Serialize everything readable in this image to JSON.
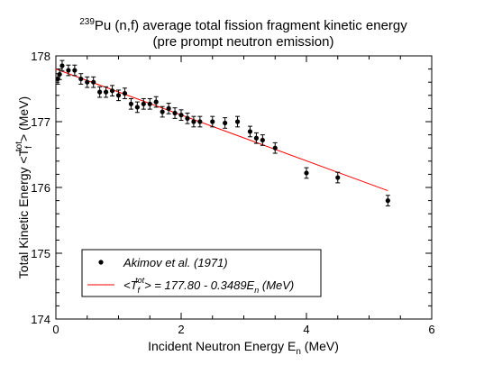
{
  "chart_data": {
    "type": "scatter",
    "title_nuclide_mass": "239",
    "title_line1_rest": "Pu (n,f) average total fission fragment kinetic energy",
    "title_line2": "(pre prompt neutron emission)",
    "xlabel_main": "Incident Neutron Energy  E",
    "xlabel_sub": "n",
    "xlabel_unit": "  (MeV)",
    "ylabel_main": "Total Kinetic Energy  <T",
    "ylabel_sub": "f",
    "ylabel_sup": "tot",
    "ylabel_unit": "> (MeV)",
    "xlim": [
      0,
      6
    ],
    "ylim": [
      174,
      178
    ],
    "xticks": [
      "0",
      "2",
      "4",
      "6"
    ],
    "yticks": [
      "174",
      "175",
      "176",
      "177",
      "178"
    ],
    "grid": false,
    "legend_position": "lower-left",
    "series": [
      {
        "name": "Akimov et al. (1971)",
        "kind": "points-with-error-bars",
        "color": "#000000",
        "x": [
          0.03,
          0.06,
          0.1,
          0.2,
          0.3,
          0.4,
          0.5,
          0.6,
          0.7,
          0.8,
          0.9,
          1.0,
          1.1,
          1.2,
          1.3,
          1.4,
          1.5,
          1.6,
          1.7,
          1.8,
          1.9,
          2.0,
          2.1,
          2.2,
          2.3,
          2.5,
          2.7,
          2.9,
          3.1,
          3.2,
          3.3,
          3.5,
          4.0,
          4.5,
          5.3
        ],
        "y": [
          177.65,
          177.72,
          177.85,
          177.78,
          177.78,
          177.65,
          177.6,
          177.6,
          177.45,
          177.45,
          177.47,
          177.4,
          177.43,
          177.27,
          177.22,
          177.27,
          177.27,
          177.3,
          177.15,
          177.2,
          177.13,
          177.1,
          177.05,
          177.0,
          177.0,
          177.0,
          176.98,
          177.0,
          176.85,
          176.75,
          176.72,
          176.6,
          176.22,
          176.15,
          175.8
        ],
        "yerr": 0.08
      },
      {
        "name_prefix": "<T",
        "name_sub": "f",
        "name_sup": "tot",
        "name_rest": "> = 177.80 - 0.3489E",
        "name_rest_sub": "n",
        "name_unit": "  (MeV)",
        "kind": "line",
        "color": "#ff0000",
        "intercept": 177.8,
        "slope": -0.3489,
        "x_range": [
          0.0,
          5.3
        ]
      }
    ]
  }
}
